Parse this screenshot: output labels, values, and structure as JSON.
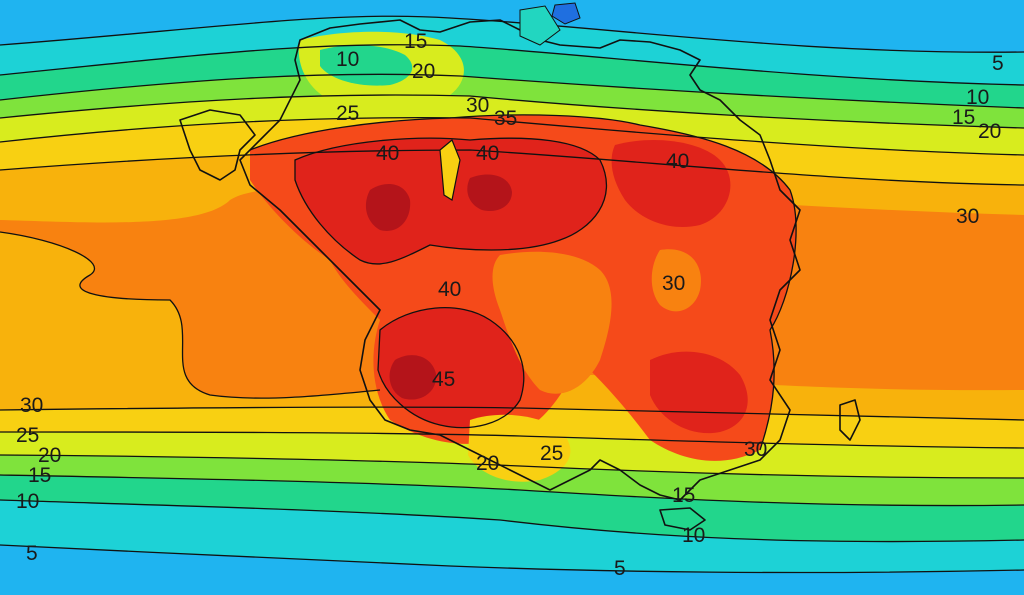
{
  "colors": {
    "c0": "#1fb4f0",
    "c5": "#1dd2d6",
    "c10": "#22d68c",
    "c15": "#7fe33c",
    "c20": "#d8ec1e",
    "c25": "#f8d012",
    "c30": "#f8b20c",
    "c35": "#f88210",
    "c40": "#f54a1a",
    "c45": "#e0231b",
    "c50": "#b4141a"
  },
  "contour_labels": [
    {
      "id": "north-10",
      "text": "10"
    },
    {
      "id": "north-15",
      "text": "15"
    },
    {
      "id": "north-20",
      "text": "20"
    },
    {
      "id": "north-25",
      "text": "25"
    },
    {
      "id": "north-30",
      "text": "30"
    },
    {
      "id": "north-35",
      "text": "35"
    },
    {
      "id": "north-40-west",
      "text": "40"
    },
    {
      "id": "north-40-mid",
      "text": "40"
    },
    {
      "id": "north-40-east",
      "text": "40"
    },
    {
      "id": "east-5",
      "text": "5"
    },
    {
      "id": "east-10",
      "text": "10"
    },
    {
      "id": "east-15",
      "text": "15"
    },
    {
      "id": "east-20",
      "text": "20"
    },
    {
      "id": "east-30",
      "text": "30"
    },
    {
      "id": "center-40",
      "text": "40"
    },
    {
      "id": "center-30",
      "text": "30"
    },
    {
      "id": "south-45",
      "text": "45"
    },
    {
      "id": "west-30",
      "text": "30"
    },
    {
      "id": "west-25",
      "text": "25"
    },
    {
      "id": "west-20",
      "text": "20"
    },
    {
      "id": "west-15",
      "text": "15"
    },
    {
      "id": "west-10",
      "text": "10"
    },
    {
      "id": "west-5",
      "text": "5"
    },
    {
      "id": "south-20",
      "text": "20"
    },
    {
      "id": "south-25",
      "text": "25"
    },
    {
      "id": "southeast-30",
      "text": "30"
    },
    {
      "id": "southeast-15",
      "text": "15"
    },
    {
      "id": "southeast-10",
      "text": "10"
    },
    {
      "id": "bottom-5",
      "text": "5"
    }
  ]
}
